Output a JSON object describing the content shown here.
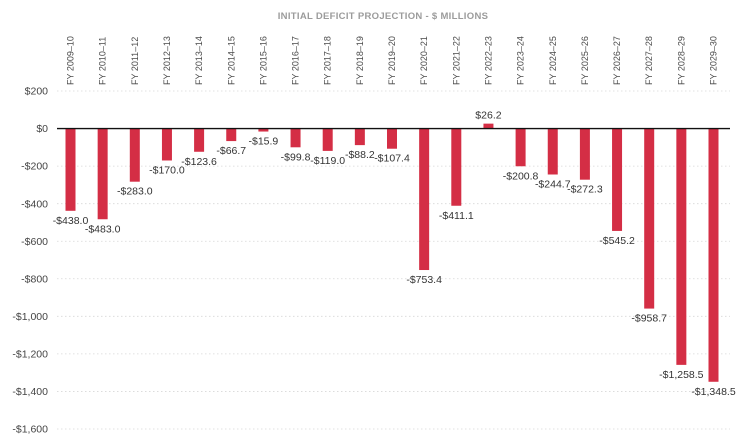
{
  "chart_data": {
    "type": "bar",
    "title": "INITIAL DEFICIT PROJECTION - $ MILLIONS",
    "xlabel": "",
    "ylabel": "",
    "categories": [
      "FY 2009–10",
      "FY 2010–11",
      "FY 2011–12",
      "FY 2012–13",
      "FY 2013–14",
      "FY 2014–15",
      "FY 2015–16",
      "FY 2016–17",
      "FY 2017–18",
      "FY 2018–19",
      "FY 2019–20",
      "FY 2020–21",
      "FY 2021–22",
      "FY 2022–23",
      "FY 2023–24",
      "FY 2024–25",
      "FY 2025–26",
      "FY 2026–27",
      "FY 2027–28",
      "FY 2028–29",
      "FY 2029–30"
    ],
    "values": [
      -438.0,
      -483.0,
      -283.0,
      -170.0,
      -123.6,
      -66.7,
      -15.9,
      -99.8,
      -119.0,
      -88.2,
      -107.4,
      -753.4,
      -411.1,
      26.2,
      -200.8,
      -244.7,
      -272.3,
      -545.2,
      -958.7,
      -1258.5,
      -1348.5
    ],
    "data_labels": [
      "-$438.0",
      "-$483.0",
      "-$283.0",
      "-$170.0",
      "-$123.6",
      "-$66.7",
      "-$15.9",
      "-$99.8",
      "-$119.0",
      "-$88.2",
      "-$107.4",
      "-$753.4",
      "-$411.1",
      "$26.2",
      "-$200.8",
      "-$244.7",
      "-$272.3",
      "-$545.2",
      "-$958.7",
      "-$1,258.5",
      "-$1,348.5"
    ],
    "ylim": [
      -1600,
      200
    ],
    "yticks": [
      200,
      0,
      -200,
      -400,
      -600,
      -800,
      -1000,
      -1200,
      -1400,
      -1600
    ],
    "ytick_labels": [
      "$200",
      "$0",
      "-$200",
      "-$400",
      "-$600",
      "-$800",
      "-$1,000",
      "-$1,200",
      "-$1,400",
      "-$1,600"
    ],
    "grid": true,
    "bar_color": "#d42e45",
    "zero_line_color": "#111111"
  }
}
